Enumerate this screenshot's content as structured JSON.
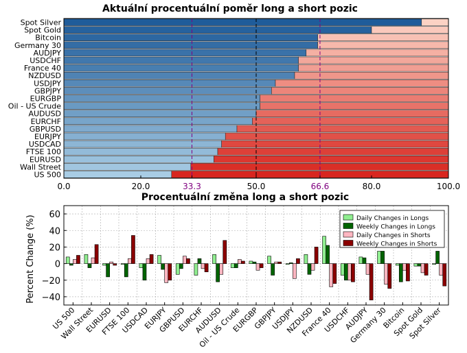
{
  "chart_data": [
    {
      "type": "bar",
      "orientation": "horizontal",
      "stacked": true,
      "title": "Aktuální procentuální poměr long a short pozic",
      "categories": [
        "Spot Silver",
        "Spot Gold",
        "Bitcoin",
        "Germany 30",
        "AUDJPY",
        "USDCHF",
        "France 40",
        "NZDUSD",
        "USDJPY",
        "GBPJPY",
        "EURGBP",
        "Oil - US Crude",
        "AUDUSD",
        "EURCHF",
        "GBPUSD",
        "EURJPY",
        "USDCAD",
        "FTSE 100",
        "EURUSD",
        "Wall Street",
        "US 500"
      ],
      "series": [
        {
          "role": "long",
          "values": [
            93,
            80,
            66,
            66,
            63,
            61,
            61,
            60,
            55,
            54,
            51,
            51,
            50,
            49,
            45,
            42,
            41,
            40,
            39,
            33,
            28
          ]
        },
        {
          "role": "short",
          "values": [
            7,
            20,
            34,
            34,
            37,
            39,
            39,
            40,
            45,
            46,
            49,
            49,
            50,
            51,
            55,
            58,
            59,
            60,
            61,
            67,
            72
          ]
        }
      ],
      "xlim": [
        0,
        100
      ],
      "xticks": [
        "0.0",
        "20.0",
        "33.3",
        "50.0",
        "66.6",
        "80.0",
        "100.0"
      ],
      "reference_lines": [
        33.3,
        50.0,
        66.6
      ],
      "colors": {
        "long_light": "#a8cce4",
        "long_dark": "#1f5c9a",
        "short_light": "#fcd2c4",
        "short_dark": "#d8261f",
        "highlight": "#800080"
      }
    },
    {
      "type": "bar",
      "title": "Procentuální změna long a short pozic",
      "ylabel": "Percent Change (%)",
      "ylim": [
        -50,
        70
      ],
      "yticks": [
        "60",
        "40",
        "20",
        "0",
        "−20",
        "−40"
      ],
      "grid": true,
      "legend_position": "top-right",
      "categories": [
        "US 500",
        "Wall Street",
        "EURUSD",
        "FTSE 100",
        "USDCAD",
        "EURJPY",
        "GBPUSD",
        "EURCHF",
        "AUDUSD",
        "Oil - US Crude",
        "EURGBP",
        "GBPJPY",
        "USDJPY",
        "NZDUSD",
        "France 40",
        "USDCHF",
        "AUDJPY",
        "Germany 30",
        "Bitcoin",
        "Spot Gold",
        "Spot Silver"
      ],
      "series": [
        {
          "name": "Daily Changes in Longs",
          "color": "#90ee90",
          "values": [
            8,
            11,
            -2,
            -1,
            -5,
            10,
            -13,
            -14,
            11,
            -5,
            3,
            9,
            -1,
            11,
            33,
            -14,
            8,
            15,
            -2,
            -3,
            -1
          ]
        },
        {
          "name": "Weekly Changes in Longs",
          "color": "#006400",
          "values": [
            -2,
            -5,
            -16,
            -16,
            -20,
            -7,
            -6,
            6,
            -22,
            -5,
            2,
            -14,
            1,
            -13,
            22,
            -20,
            7,
            15,
            -22,
            -3,
            15
          ]
        },
        {
          "name": "Daily Changes in Shorts",
          "color": "#ffb6c1",
          "values": [
            5,
            7,
            2,
            6,
            6,
            -23,
            9,
            -6,
            -13,
            5,
            -8,
            2,
            -18,
            -8,
            -28,
            -20,
            -13,
            -25,
            -8,
            -11,
            -14
          ]
        },
        {
          "name": "Weekly Changes in Shorts",
          "color": "#8b0000",
          "values": [
            10,
            23,
            -2,
            34,
            11,
            -20,
            6,
            -10,
            28,
            3,
            -5,
            2,
            6,
            20,
            -24,
            -22,
            -44,
            -30,
            -21,
            -14,
            -27
          ]
        }
      ]
    }
  ]
}
